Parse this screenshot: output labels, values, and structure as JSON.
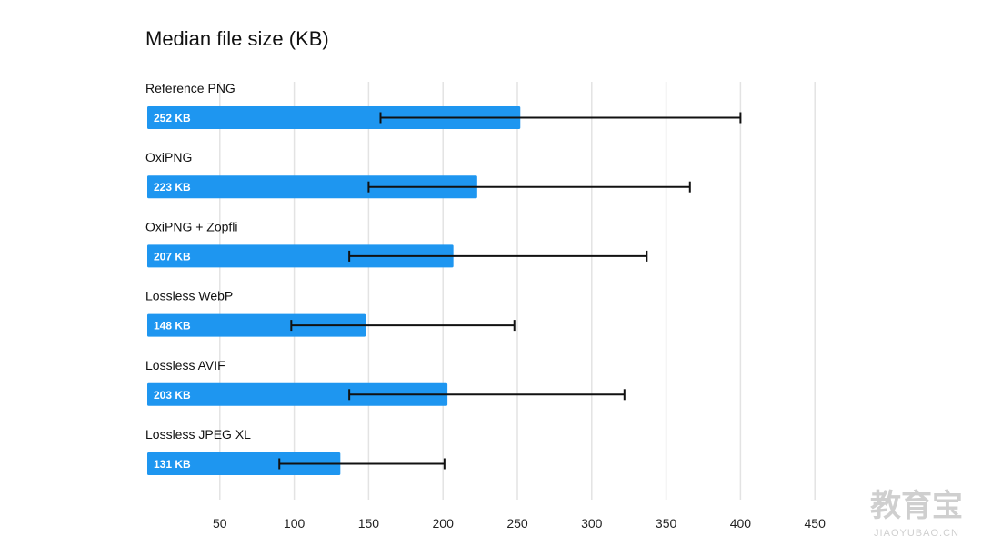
{
  "chart_data": {
    "type": "bar",
    "orientation": "horizontal",
    "title": "Median file size (KB)",
    "xlabel": "",
    "ylabel": "",
    "categories": [
      "Reference PNG",
      "OxiPNG",
      "OxiPNG + Zopfli",
      "Lossless WebP",
      "Lossless AVIF",
      "Lossless JPEG XL"
    ],
    "values": [
      252,
      223,
      207,
      148,
      203,
      131
    ],
    "value_labels": [
      "252 KB",
      "223 KB",
      "207 KB",
      "148 KB",
      "203 KB",
      "131 KB"
    ],
    "error_low": [
      158,
      150,
      137,
      98,
      137,
      90
    ],
    "error_high": [
      400,
      366,
      337,
      248,
      322,
      201
    ],
    "x_ticks": [
      50,
      100,
      150,
      200,
      250,
      300,
      350,
      400,
      450
    ],
    "x_tick_labels": [
      "50",
      "100",
      "150",
      "200",
      "250",
      "300",
      "350",
      "400",
      "450"
    ],
    "xlim": [
      0,
      450
    ],
    "grid": true,
    "bar_color": "#1e96f0",
    "error_color": "#111111"
  },
  "watermark": {
    "main": "教育宝",
    "sub": "JIAOYUBAO.CN"
  }
}
